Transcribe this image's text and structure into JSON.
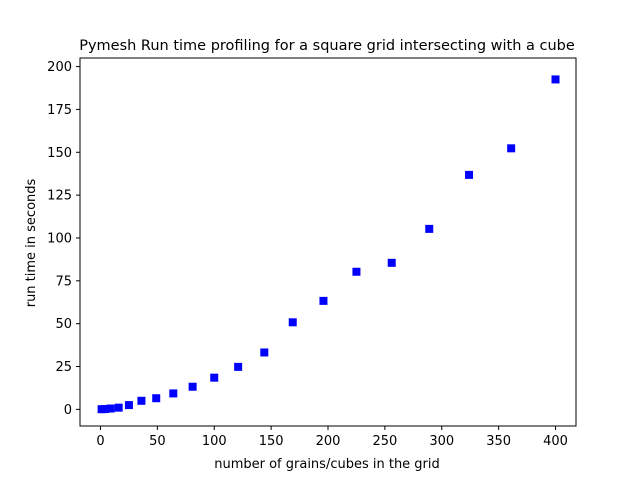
{
  "chart_data": {
    "type": "scatter",
    "title": "Pymesh Run time profiling for a square grid intersecting with a cube",
    "xlabel": "number of grains/cubes in the grid",
    "ylabel": "run time in seconds",
    "xlim": [
      -18,
      418
    ],
    "ylim": [
      -9.7,
      205
    ],
    "xticks": [
      0,
      50,
      100,
      150,
      200,
      250,
      300,
      350,
      400
    ],
    "yticks": [
      0,
      25,
      50,
      75,
      100,
      125,
      150,
      175,
      200
    ],
    "grid": false,
    "legend": "none",
    "marker": "square",
    "color": "#0000ff",
    "series": [
      {
        "x": [
          1,
          4,
          9,
          16,
          25,
          36,
          49,
          64,
          81,
          100,
          121,
          144,
          169,
          196,
          225,
          256,
          289,
          324,
          361,
          400
        ],
        "y": [
          0.1,
          0.2,
          0.5,
          1.0,
          2.5,
          5.0,
          6.5,
          9.3,
          13.2,
          18.5,
          24.8,
          33.2,
          50.8,
          63.3,
          80.3,
          85.5,
          105.3,
          136.8,
          152.3,
          192.5
        ]
      }
    ]
  }
}
